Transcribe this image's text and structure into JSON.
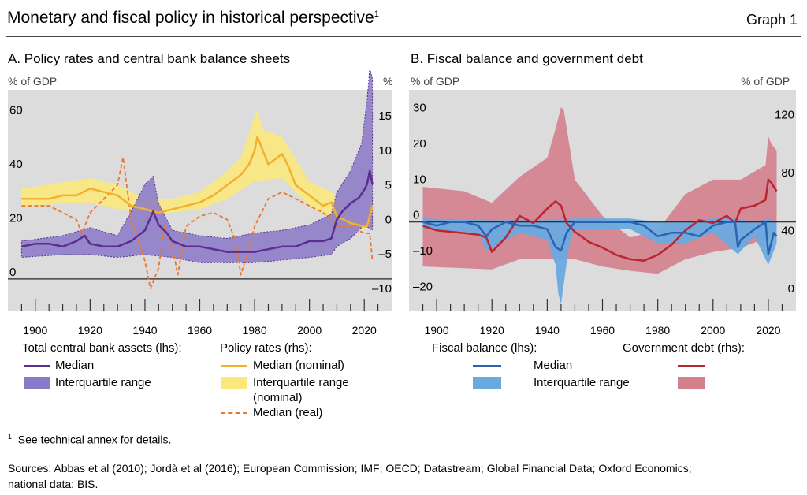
{
  "header": {
    "title": "Monetary and fiscal policy in historical perspective",
    "title_note": "1",
    "graph_label": "Graph 1"
  },
  "panelA": {
    "title": "A. Policy rates and central bank balance sheets",
    "left_unit": "% of GDP",
    "right_unit": "%",
    "left_ticks": [
      "0",
      "20",
      "40",
      "60"
    ],
    "right_ticks": [
      "–10",
      "–5",
      "0",
      "5",
      "10",
      "15"
    ],
    "x_ticks": [
      "1900",
      "1920",
      "1940",
      "1960",
      "1980",
      "2000",
      "2020"
    ],
    "legend": {
      "group1_title": "Total central bank assets (lhs):",
      "group1_median": "Median",
      "group1_iqr": "Interquartile range",
      "group2_title": "Policy rates (rhs):",
      "group2_median": "Median (nominal)",
      "group2_iqr_line1": "Interquartile range",
      "group2_iqr_line2": "(nominal)",
      "group2_real": "Median (real)"
    }
  },
  "panelB": {
    "title": "B. Fiscal balance and government debt",
    "left_unit": "% of GDP",
    "right_unit": "% of GDP",
    "left_ticks": [
      "–20",
      "–10",
      "0",
      "10",
      "20",
      "30"
    ],
    "right_ticks": [
      "0",
      "40",
      "80",
      "120"
    ],
    "x_ticks": [
      "1900",
      "1920",
      "1940",
      "1960",
      "1980",
      "2000",
      "2020"
    ],
    "legend": {
      "group1_title": "Fiscal balance (lhs):",
      "group2_title": "Government debt (rhs):",
      "median": "Median",
      "iqr": "Interquartile range"
    }
  },
  "footnotes": {
    "note_mark": "1",
    "note_text": "See technical annex for details.",
    "sources_line1": "Sources: Abbas et al (2010); Jordà et al (2016); European Commission; IMF; OECD; Datastream; Global Financial Data; Oxford Economics;",
    "sources_line2": "national data; BIS."
  },
  "colors": {
    "plot_bg": "#dcdcdc",
    "purple": "#5c2d91",
    "purple_band": "#8a78c8",
    "yellow": "#f2b02e",
    "yellow_band": "#fbe87c",
    "orange": "#e8782f",
    "blue": "#2a64b0",
    "blue_band": "#6aa9e0",
    "red": "#b8262f",
    "red_band": "#d37f8c"
  },
  "chart_data": [
    {
      "type": "line",
      "title": "A. Policy rates and central bank balance sheets",
      "x_range": [
        1890,
        2030
      ],
      "ylim_lhs": [
        -12,
        70
      ],
      "ylim_rhs": [
        -12.3,
        19.8
      ],
      "series": [
        {
          "name": "Total central bank assets median (lhs)",
          "axis": "lhs",
          "x": [
            1895,
            1900,
            1905,
            1910,
            1915,
            1918,
            1920,
            1925,
            1930,
            1935,
            1940,
            1943,
            1945,
            1948,
            1950,
            1955,
            1960,
            1965,
            1970,
            1975,
            1980,
            1985,
            1990,
            1995,
            2000,
            2005,
            2008,
            2010,
            2012,
            2015,
            2018,
            2020,
            2021,
            2022,
            2023
          ],
          "values": [
            12,
            13,
            13,
            12,
            14,
            16,
            13,
            12,
            12,
            14,
            18,
            25,
            20,
            17,
            14,
            12,
            12,
            11,
            10,
            10,
            10,
            11,
            12,
            12,
            14,
            14,
            15,
            22,
            25,
            28,
            30,
            33,
            35,
            40,
            35
          ]
        },
        {
          "name": "Total central bank assets IQR low (lhs)",
          "axis": "lhs",
          "x": [
            1895,
            1910,
            1920,
            1930,
            1940,
            1950,
            1960,
            1970,
            1980,
            1990,
            2000,
            2008,
            2010,
            2015,
            2020,
            2023
          ],
          "values": [
            8,
            9,
            9,
            8,
            9,
            8,
            6,
            6,
            6,
            7,
            8,
            9,
            12,
            15,
            20,
            18
          ]
        },
        {
          "name": "Total central bank assets IQR high (lhs)",
          "axis": "lhs",
          "x": [
            1895,
            1910,
            1920,
            1930,
            1935,
            1940,
            1943,
            1945,
            1950,
            1960,
            1970,
            1980,
            1990,
            2000,
            2008,
            2010,
            2015,
            2019,
            2021,
            2022,
            2023
          ],
          "values": [
            14,
            16,
            19,
            16,
            25,
            35,
            38,
            28,
            18,
            16,
            15,
            17,
            18,
            20,
            24,
            32,
            40,
            50,
            66,
            78,
            74
          ]
        },
        {
          "name": "Policy rate median nominal (rhs)",
          "axis": "rhs",
          "x": [
            1895,
            1900,
            1905,
            1910,
            1915,
            1920,
            1925,
            1930,
            1935,
            1940,
            1945,
            1950,
            1955,
            1960,
            1965,
            1970,
            1975,
            1978,
            1980,
            1981,
            1983,
            1985,
            1990,
            1992,
            1995,
            2000,
            2005,
            2008,
            2010,
            2015,
            2020,
            2021,
            2022,
            2023
          ],
          "values": [
            4,
            4,
            4,
            4.5,
            4.5,
            5.5,
            5,
            4.5,
            3,
            2.5,
            2,
            2.5,
            3,
            3.5,
            4.5,
            6,
            7.5,
            9,
            11,
            13,
            11,
            9,
            10.5,
            9,
            6,
            4.5,
            3,
            3.5,
            1.5,
            0.5,
            0,
            0,
            1.5,
            3
          ]
        },
        {
          "name": "Policy rate IQR nominal low (rhs)",
          "axis": "rhs",
          "x": [
            1895,
            1920,
            1930,
            1940,
            1950,
            1960,
            1970,
            1980,
            1990,
            2000,
            2008,
            2015,
            2020,
            2023
          ],
          "values": [
            3,
            3.5,
            2.5,
            2,
            2,
            2.5,
            4,
            6.5,
            7,
            3,
            1,
            -0.5,
            -0.5,
            0.5
          ]
        },
        {
          "name": "Policy rate IQR nominal high (rhs)",
          "axis": "rhs",
          "x": [
            1895,
            1920,
            1930,
            1940,
            1950,
            1960,
            1970,
            1975,
            1980,
            1981,
            1983,
            1990,
            2000,
            2008,
            2015,
            2020,
            2023
          ],
          "values": [
            5.5,
            7,
            6,
            4,
            4,
            5,
            8,
            10,
            16,
            17,
            14,
            13,
            6.5,
            5,
            1.5,
            0.5,
            4.5
          ]
        },
        {
          "name": "Policy rate median real (rhs)",
          "axis": "rhs",
          "x": [
            1895,
            1905,
            1915,
            1917,
            1920,
            1925,
            1930,
            1932,
            1935,
            1940,
            1942,
            1945,
            1947,
            1950,
            1952,
            1955,
            1960,
            1965,
            1970,
            1973,
            1975,
            1978,
            1980,
            1985,
            1990,
            1995,
            2000,
            2005,
            2008,
            2010,
            2015,
            2020,
            2022,
            2023
          ],
          "values": [
            3,
            3,
            1,
            -1,
            2,
            4,
            6,
            10,
            1,
            -5,
            -9,
            -6,
            0,
            -3,
            -7,
            0,
            1.5,
            2,
            1,
            -2,
            -7,
            -3,
            0,
            4,
            5,
            4,
            3,
            2,
            1,
            0,
            0,
            -1,
            -1,
            -5
          ]
        }
      ]
    },
    {
      "type": "line",
      "title": "B. Fiscal balance and government debt",
      "x_range": [
        1890,
        2030
      ],
      "ylim_lhs": [
        -25,
        37
      ],
      "ylim_rhs": [
        -11,
        142
      ],
      "series": [
        {
          "name": "Fiscal balance median (lhs)",
          "axis": "lhs",
          "x": [
            1895,
            1900,
            1905,
            1910,
            1915,
            1918,
            1920,
            1925,
            1930,
            1935,
            1940,
            1943,
            1945,
            1947,
            1950,
            1955,
            1960,
            1965,
            1970,
            1975,
            1980,
            1985,
            1990,
            1995,
            2000,
            2005,
            2008,
            2009,
            2010,
            2015,
            2019,
            2020,
            2021,
            2022,
            2023
          ],
          "values": [
            0,
            -1,
            0,
            0,
            -1,
            -4,
            -2,
            0,
            -1,
            -1,
            -2,
            -7,
            -8,
            -3,
            0,
            0,
            0,
            0,
            0,
            -1,
            -4,
            -3,
            -3,
            -4,
            -1,
            0,
            0,
            -7,
            -5,
            -2,
            0,
            -9,
            -6,
            -3,
            -4
          ]
        },
        {
          "name": "Fiscal balance IQR low (lhs)",
          "axis": "lhs",
          "x": [
            1895,
            1915,
            1918,
            1930,
            1940,
            1943,
            1944,
            1945,
            1948,
            1950,
            1970,
            1980,
            1990,
            2000,
            2009,
            2015,
            2020,
            2023
          ],
          "values": [
            -2,
            -3,
            -8,
            -3,
            -5,
            -12,
            -20,
            -23,
            -6,
            -2,
            -2,
            -6,
            -6,
            -3,
            -9,
            -4,
            -12,
            -6
          ]
        },
        {
          "name": "Fiscal balance IQR high (lhs)",
          "axis": "lhs",
          "x": [
            1895,
            1920,
            1940,
            1950,
            1970,
            1980,
            1990,
            2000,
            2008,
            2015,
            2020,
            2023
          ],
          "values": [
            1,
            0.5,
            0.5,
            1,
            1,
            0,
            0,
            1,
            1,
            0,
            1,
            0
          ]
        },
        {
          "name": "Government debt median (rhs)",
          "axis": "rhs",
          "x": [
            1895,
            1900,
            1905,
            1910,
            1915,
            1918,
            1920,
            1925,
            1930,
            1935,
            1940,
            1943,
            1945,
            1947,
            1950,
            1955,
            1960,
            1965,
            1970,
            1975,
            1980,
            1985,
            1990,
            1995,
            2000,
            2005,
            2008,
            2010,
            2015,
            2019,
            2020,
            2021,
            2022,
            2023
          ],
          "values": [
            48,
            45,
            44,
            43,
            42,
            40,
            30,
            40,
            55,
            50,
            60,
            65,
            62,
            50,
            44,
            37,
            33,
            28,
            25,
            24,
            28,
            35,
            45,
            52,
            50,
            55,
            50,
            60,
            62,
            66,
            80,
            78,
            75,
            72
          ]
        },
        {
          "name": "Government debt IQR low (rhs)",
          "axis": "rhs",
          "x": [
            1895,
            1920,
            1930,
            1940,
            1950,
            1960,
            1970,
            1980,
            1990,
            2000,
            2010,
            2020,
            2023
          ],
          "values": [
            20,
            18,
            25,
            25,
            25,
            20,
            17,
            15,
            25,
            30,
            33,
            40,
            40
          ]
        },
        {
          "name": "Government debt IQR high (rhs)",
          "axis": "rhs",
          "x": [
            1895,
            1910,
            1920,
            1930,
            1940,
            1943,
            1945,
            1946,
            1950,
            1960,
            1970,
            1980,
            1990,
            2000,
            2010,
            2019,
            2020,
            2021,
            2023
          ],
          "values": [
            75,
            72,
            64,
            82,
            95,
            115,
            130,
            128,
            80,
            55,
            40,
            45,
            70,
            80,
            80,
            90,
            110,
            105,
            100
          ]
        }
      ]
    }
  ]
}
